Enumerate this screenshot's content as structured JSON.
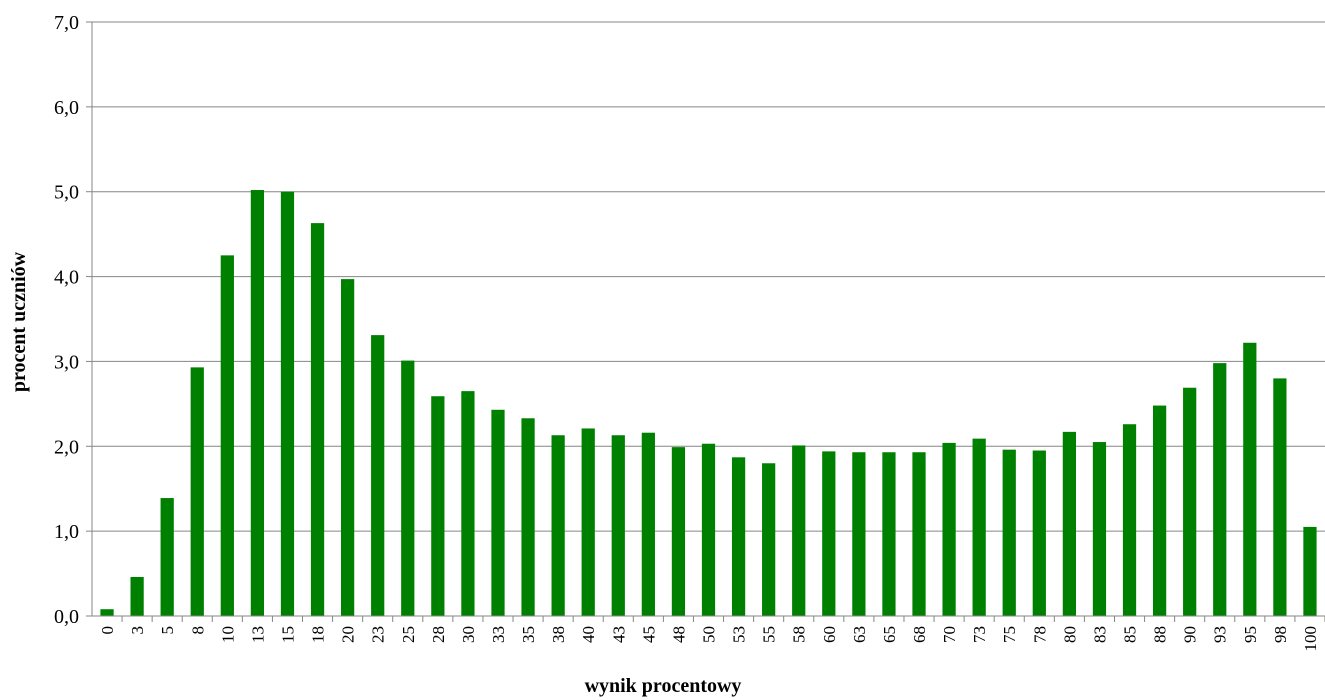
{
  "chart_data": {
    "type": "bar",
    "title": "",
    "xlabel": "wynik procentowy",
    "ylabel": "procent uczniów",
    "ylim": [
      0,
      7
    ],
    "yticks": [
      "0,0",
      "1,0",
      "2,0",
      "3,0",
      "4,0",
      "5,0",
      "6,0",
      "7,0"
    ],
    "grid": true,
    "legend": "none",
    "bar_color": "#008000",
    "categories": [
      "0",
      "3",
      "5",
      "8",
      "10",
      "13",
      "15",
      "18",
      "20",
      "23",
      "25",
      "28",
      "30",
      "33",
      "35",
      "38",
      "40",
      "43",
      "45",
      "48",
      "50",
      "53",
      "55",
      "58",
      "60",
      "63",
      "65",
      "68",
      "70",
      "73",
      "75",
      "78",
      "80",
      "83",
      "85",
      "88",
      "90",
      "93",
      "95",
      "98",
      "100"
    ],
    "values": [
      0.08,
      0.46,
      1.39,
      2.93,
      4.25,
      5.02,
      5.0,
      4.63,
      3.97,
      3.31,
      3.01,
      2.59,
      2.65,
      2.43,
      2.33,
      2.13,
      2.21,
      2.13,
      2.16,
      1.99,
      2.03,
      1.87,
      1.8,
      2.01,
      1.94,
      1.93,
      1.93,
      1.93,
      2.04,
      2.09,
      1.96,
      1.95,
      2.17,
      2.05,
      2.26,
      2.48,
      2.69,
      2.98,
      3.22,
      2.8,
      1.05
    ]
  }
}
